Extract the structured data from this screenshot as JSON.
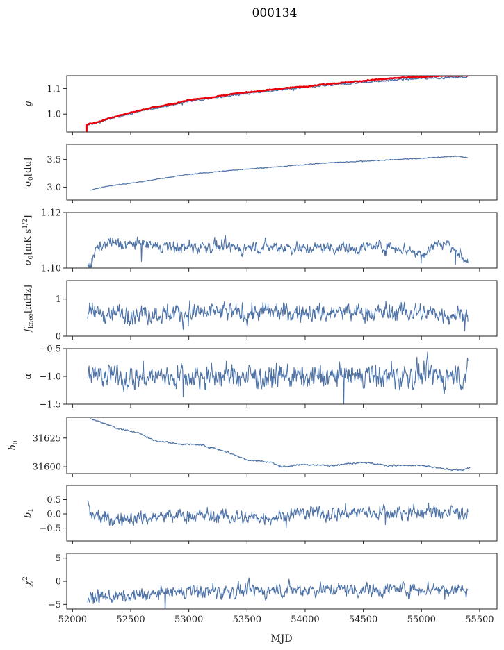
{
  "title": "000134",
  "chart_data": {
    "type": "line",
    "xlabel": "MJD",
    "xlim": [
      51950,
      55650
    ],
    "x_ticks": [
      52000,
      52500,
      53000,
      53500,
      54000,
      54500,
      55000,
      55500
    ],
    "x_tick_labels": [
      "52000",
      "52500",
      "53000",
      "53500",
      "54000",
      "54500",
      "55000",
      "55500"
    ],
    "colors": {
      "series": "#4c72a8",
      "highlight": "#e8000b"
    },
    "panels": [
      {
        "ylabel": "g",
        "ylim": [
          0.93,
          1.15
        ],
        "y_ticks": [
          1.0,
          1.1
        ],
        "y_tick_labels": [
          "1.0",
          "1.1"
        ],
        "series": [
          {
            "color": "#4c72a8",
            "width": 1.3,
            "points": [
              [
                52120,
                0.956
              ],
              [
                52200,
                0.964
              ],
              [
                52300,
                0.979
              ],
              [
                52500,
                1.002
              ],
              [
                52700,
                1.023
              ],
              [
                52900,
                1.039
              ],
              [
                53000,
                1.051
              ],
              [
                53200,
                1.062
              ],
              [
                53400,
                1.075
              ],
              [
                53600,
                1.085
              ],
              [
                53800,
                1.095
              ],
              [
                54000,
                1.104
              ],
              [
                54200,
                1.112
              ],
              [
                54400,
                1.12
              ],
              [
                54600,
                1.128
              ],
              [
                54800,
                1.134
              ],
              [
                55000,
                1.139
              ],
              [
                55200,
                1.143
              ],
              [
                55400,
                1.146
              ]
            ],
            "noise": 0.002
          },
          {
            "color": "#e8000b",
            "width": 2.4,
            "points": [
              [
                52120,
                0.958
              ],
              [
                52200,
                0.967
              ],
              [
                52300,
                0.982
              ],
              [
                52500,
                1.006
              ],
              [
                52700,
                1.027
              ],
              [
                52900,
                1.043
              ],
              [
                53000,
                1.055
              ],
              [
                53200,
                1.066
              ],
              [
                53400,
                1.08
              ],
              [
                53600,
                1.09
              ],
              [
                53800,
                1.1
              ],
              [
                54000,
                1.108
              ],
              [
                54200,
                1.118
              ],
              [
                54400,
                1.126
              ],
              [
                54600,
                1.134
              ],
              [
                54800,
                1.141
              ],
              [
                55000,
                1.146
              ],
              [
                55200,
                1.149
              ],
              [
                55400,
                1.15
              ]
            ],
            "noise": 0.001
          },
          {
            "color": "#e8000b",
            "width": 3.0,
            "points": [
              [
                52120,
                0.93
              ],
              [
                52120,
                0.962
              ]
            ],
            "noise": 0
          }
        ]
      },
      {
        "ylabel": "σ0 [du]",
        "ylim": [
          2.77,
          3.77
        ],
        "y_ticks": [
          3.0,
          3.5
        ],
        "y_tick_labels": [
          "3.0",
          "3.5"
        ],
        "series": [
          {
            "color": "#4c72a8",
            "width": 1.2,
            "points": [
              [
                52150,
                2.95
              ],
              [
                52300,
                3.02
              ],
              [
                52600,
                3.1
              ],
              [
                52800,
                3.17
              ],
              [
                53000,
                3.23
              ],
              [
                53200,
                3.27
              ],
              [
                53500,
                3.33
              ],
              [
                53800,
                3.37
              ],
              [
                54000,
                3.41
              ],
              [
                54200,
                3.44
              ],
              [
                54500,
                3.47
              ],
              [
                54800,
                3.5
              ],
              [
                55000,
                3.52
              ],
              [
                55200,
                3.55
              ],
              [
                55300,
                3.56
              ],
              [
                55400,
                3.53
              ]
            ],
            "noise": 0.004
          }
        ]
      },
      {
        "ylabel": "σ0[mK s1/2]",
        "ylim": [
          1.1,
          1.12
        ],
        "y_ticks": [
          1.1,
          1.12
        ],
        "y_tick_labels": [
          "1.10",
          "1.12"
        ],
        "series": [
          {
            "color": "#4c72a8",
            "width": 1.1,
            "points": [
              [
                52130,
                1.1025
              ],
              [
                52160,
                1.101
              ],
              [
                52200,
                1.1065
              ],
              [
                52300,
                1.1095
              ],
              [
                52400,
                1.1085
              ],
              [
                52600,
                1.1085
              ],
              [
                52800,
                1.1075
              ],
              [
                53000,
                1.1075
              ],
              [
                53200,
                1.1078
              ],
              [
                53400,
                1.1072
              ],
              [
                53600,
                1.1075
              ],
              [
                53800,
                1.1078
              ],
              [
                54000,
                1.107
              ],
              [
                54200,
                1.1075
              ],
              [
                54400,
                1.1072
              ],
              [
                54600,
                1.1078
              ],
              [
                54800,
                1.1075
              ],
              [
                55000,
                1.105
              ],
              [
                55100,
                1.108
              ],
              [
                55200,
                1.1095
              ],
              [
                55300,
                1.106
              ],
              [
                55400,
                1.1025
              ]
            ],
            "noise": 0.0011
          }
        ]
      },
      {
        "ylabel": "fknee [mHz]",
        "ylim": [
          0,
          1.5
        ],
        "y_ticks": [
          0,
          1
        ],
        "y_tick_labels": [
          "0",
          "1"
        ],
        "series": [
          {
            "color": "#4c72a8",
            "width": 1.1,
            "points": [
              [
                52130,
                0.62
              ],
              [
                53000,
                0.62
              ],
              [
                54000,
                0.63
              ],
              [
                55000,
                0.63
              ],
              [
                55400,
                0.6
              ]
            ],
            "noise": 0.13
          }
        ]
      },
      {
        "ylabel": "α",
        "ylim": [
          -1.5,
          -0.5
        ],
        "y_ticks": [
          -1.5,
          -1.0,
          -0.5
        ],
        "y_tick_labels": [
          "−1.5",
          "−1.0",
          "−0.5"
        ],
        "series": [
          {
            "color": "#4c72a8",
            "width": 1.1,
            "points": [
              [
                52130,
                -1.02
              ],
              [
                53000,
                -1.0
              ],
              [
                54000,
                -1.01
              ],
              [
                55000,
                -0.99
              ],
              [
                55400,
                -1.0
              ]
            ],
            "noise": 0.11
          }
        ]
      },
      {
        "ylabel": "b0",
        "ylim": [
          31594,
          31643
        ],
        "y_ticks": [
          31600,
          31625
        ],
        "y_tick_labels": [
          "31600",
          "31625"
        ],
        "series": [
          {
            "color": "#4c72a8",
            "width": 1.2,
            "points": [
              [
                52150,
                31642
              ],
              [
                52300,
                31637
              ],
              [
                52400,
                31633
              ],
              [
                52550,
                31630
              ],
              [
                52700,
                31623
              ],
              [
                52900,
                31620
              ],
              [
                53100,
                31619
              ],
              [
                53300,
                31614
              ],
              [
                53500,
                31606
              ],
              [
                53700,
                31604
              ],
              [
                53800,
                31600
              ],
              [
                54000,
                31602
              ],
              [
                54200,
                31601
              ],
              [
                54500,
                31604
              ],
              [
                54700,
                31601
              ],
              [
                55000,
                31601
              ],
              [
                55200,
                31598
              ],
              [
                55350,
                31597
              ],
              [
                55420,
                31599
              ]
            ],
            "noise": 0.35
          }
        ]
      },
      {
        "ylabel": "b1",
        "ylim": [
          -0.95,
          1.0
        ],
        "y_ticks": [
          -0.5,
          0.0,
          0.5
        ],
        "y_tick_labels": [
          "−0.5",
          "0.0",
          "0.5"
        ],
        "series": [
          {
            "color": "#4c72a8",
            "width": 1.1,
            "points": [
              [
                52130,
                0.55
              ],
              [
                52150,
                -0.05
              ],
              [
                52300,
                -0.2
              ],
              [
                52600,
                -0.15
              ],
              [
                53000,
                -0.05
              ],
              [
                53500,
                -0.15
              ],
              [
                54000,
                0.0
              ],
              [
                54500,
                0.05
              ],
              [
                55000,
                0.05
              ],
              [
                55400,
                0.05
              ]
            ],
            "noise": 0.13
          }
        ]
      },
      {
        "ylabel": "χ2",
        "ylim": [
          -6,
          6
        ],
        "y_ticks": [
          -5,
          0,
          5
        ],
        "y_tick_labels": [
          "−5",
          "0",
          "5"
        ],
        "series": [
          {
            "color": "#4c72a8",
            "width": 1.1,
            "points": [
              [
                52130,
                -3.5
              ],
              [
                52300,
                -3.5
              ],
              [
                52600,
                -3.0
              ],
              [
                53000,
                -2.2
              ],
              [
                53500,
                -2.2
              ],
              [
                54000,
                -1.7
              ],
              [
                54500,
                -1.8
              ],
              [
                55000,
                -1.6
              ],
              [
                55400,
                -1.7
              ]
            ],
            "noise": 0.75
          }
        ]
      }
    ]
  }
}
